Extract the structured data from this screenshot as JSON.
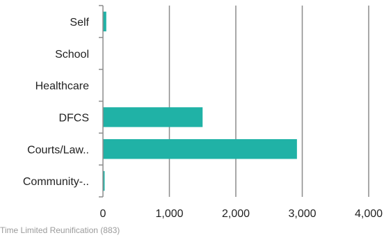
{
  "chart_data": {
    "type": "bar",
    "orientation": "horizontal",
    "categories": [
      "Self",
      "School",
      "Healthcare",
      "DFCS",
      "Courts/Law..",
      "Community-.."
    ],
    "values": [
      50,
      0,
      0,
      1500,
      2920,
      25
    ],
    "x_ticks": [
      0,
      1000,
      2000,
      3000,
      4000
    ],
    "x_tick_labels": [
      "0",
      "1,000",
      "2,000",
      "3,000",
      "4,000"
    ],
    "xlim": [
      0,
      4000
    ],
    "grid": "vertical",
    "bar_color": "#20b2a6",
    "grid_color": "#8c8c8c",
    "title": "",
    "xlabel": "",
    "ylabel": ""
  },
  "footer": {
    "caption": "Time Limited Reunification (883)"
  }
}
